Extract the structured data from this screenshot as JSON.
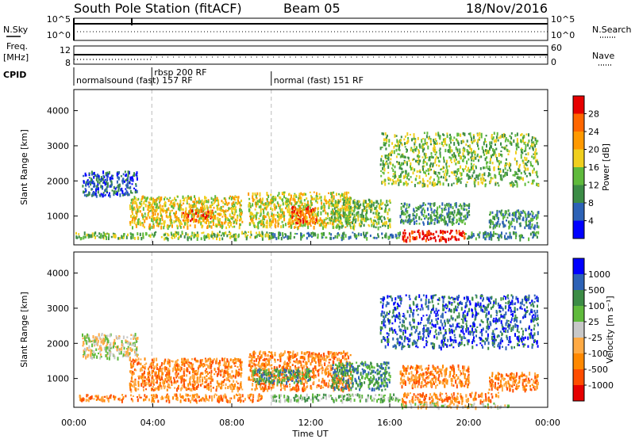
{
  "header": {
    "station": "South Pole Station (fitACF)",
    "beam": "Beam 05",
    "date": "18/Nov/2016"
  },
  "left_labels": {
    "nsky": "N.Sky",
    "freq_line1": "Freq.",
    "freq_line2": "[MHz]",
    "cpid": "CPID"
  },
  "right_labels": {
    "nsearch": "N.Search",
    "nave": "Nave"
  },
  "noise_ticks_left": [
    "10^5",
    "10^0"
  ],
  "noise_ticks_right": [
    "10^5",
    "10^0"
  ],
  "freq_ticks": [
    "12",
    "8"
  ],
  "nave_ticks": [
    "60",
    "0"
  ],
  "cpid_segments": [
    {
      "label": "normalsound (fast) 157 RF",
      "start_hour": 0
    },
    {
      "label": "rbsp 200 RF",
      "start_hour": 3.95
    },
    {
      "label": "normal (fast) 151 RF",
      "start_hour": 10
    }
  ],
  "x_axis": {
    "label": "Time UT",
    "ticks": [
      "00:00",
      "04:00",
      "08:00",
      "12:00",
      "16:00",
      "20:00",
      "00:00"
    ]
  },
  "colors": {
    "power": [
      "#0000ff",
      "#2d62b6",
      "#3c8c46",
      "#5fba3c",
      "#f0cf1e",
      "#ff9900",
      "#ff6600",
      "#e60000"
    ],
    "velocity": [
      "#e60000",
      "#ff4d00",
      "#ff8800",
      "#ffaa44",
      "#c8c8c8",
      "#5fba3c",
      "#3c8c46",
      "#2d62b6",
      "#0000ff"
    ],
    "ground_scatter": "#aaaaaa"
  },
  "chart_data": [
    {
      "type": "heatmap",
      "panel": "power",
      "ylabel": "Slant Range [km]",
      "xlabel": "Time UT",
      "xlim_hours": [
        0,
        24
      ],
      "ylim": [
        180,
        4600
      ],
      "yticks": [
        "1000",
        "2000",
        "3000",
        "4000"
      ],
      "colorbar": {
        "label": "Power [dB]",
        "ticks": [
          "4",
          "8",
          "12",
          "16",
          "20",
          "24",
          "28"
        ],
        "range": [
          0,
          30
        ]
      },
      "scatter_regions": [
        {
          "t_start": 0.0,
          "t_end": 4.0,
          "r_start": 400,
          "r_end": 560,
          "value": 12
        },
        {
          "t_start": 4.0,
          "t_end": 10.0,
          "r_start": 380,
          "r_end": 580,
          "value": 14
        },
        {
          "t_start": 10.0,
          "t_end": 16.5,
          "r_start": 400,
          "r_end": 560,
          "value": 10
        },
        {
          "t_start": 16.6,
          "t_end": 19.8,
          "r_start": 340,
          "r_end": 620,
          "value": 28
        },
        {
          "t_start": 19.8,
          "t_end": 23.5,
          "r_start": 380,
          "r_end": 580,
          "value": 10
        },
        {
          "t_start": 2.8,
          "t_end": 8.5,
          "r_start": 700,
          "r_end": 1600,
          "value": 16
        },
        {
          "t_start": 5.5,
          "t_end": 7.0,
          "r_start": 900,
          "r_end": 1200,
          "value": 24
        },
        {
          "t_start": 8.8,
          "t_end": 14.0,
          "r_start": 700,
          "r_end": 1700,
          "value": 18
        },
        {
          "t_start": 11.0,
          "t_end": 12.3,
          "r_start": 800,
          "r_end": 1300,
          "value": 26
        },
        {
          "t_start": 13.0,
          "t_end": 16.0,
          "r_start": 700,
          "r_end": 1500,
          "value": 12
        },
        {
          "t_start": 16.5,
          "t_end": 20.0,
          "r_start": 800,
          "r_end": 1400,
          "value": 10
        },
        {
          "t_start": 21.0,
          "t_end": 23.5,
          "r_start": 700,
          "r_end": 1200,
          "value": 8
        },
        {
          "t_start": 0.4,
          "t_end": 3.2,
          "r_start": 1600,
          "r_end": 2300,
          "value": 6
        },
        {
          "t_start": 15.5,
          "t_end": 23.5,
          "r_start": 1900,
          "r_end": 3400,
          "value": 12
        }
      ]
    },
    {
      "type": "heatmap",
      "panel": "velocity",
      "ylabel": "Slant Range [km]",
      "xlabel": "Time UT",
      "xlim_hours": [
        0,
        24
      ],
      "ylim": [
        180,
        4600
      ],
      "yticks": [
        "1000",
        "2000",
        "3000",
        "4000"
      ],
      "colorbar": {
        "label": "Velocity [m s⁻¹]",
        "ticks": [
          "1000",
          "500",
          "100",
          "25",
          "-25",
          "-100",
          "-500",
          "-1000"
        ],
        "range": [
          -1200,
          1200
        ]
      },
      "scatter_regions": [
        {
          "t_start": 0.2,
          "t_end": 4.0,
          "r_start": 400,
          "r_end": 560,
          "value": -150
        },
        {
          "t_start": 4.0,
          "t_end": 9.5,
          "r_start": 380,
          "r_end": 580,
          "value": -180
        },
        {
          "t_start": 10.0,
          "t_end": 16.5,
          "r_start": 380,
          "r_end": 580,
          "value": 60
        },
        {
          "t_start": 16.6,
          "t_end": 21.5,
          "r_start": 340,
          "r_end": 620,
          "value": -250
        },
        {
          "t_start": 16.5,
          "t_end": 22.0,
          "r_start": 200,
          "r_end": 320,
          "value": 0
        },
        {
          "t_start": 2.8,
          "t_end": 8.5,
          "r_start": 700,
          "r_end": 1600,
          "value": -300
        },
        {
          "t_start": 8.8,
          "t_end": 14.0,
          "r_start": 700,
          "r_end": 1800,
          "value": -200
        },
        {
          "t_start": 9.0,
          "t_end": 12.0,
          "r_start": 900,
          "r_end": 1300,
          "value": 250
        },
        {
          "t_start": 13.0,
          "t_end": 16.0,
          "r_start": 700,
          "r_end": 1500,
          "value": 400
        },
        {
          "t_start": 16.5,
          "t_end": 20.0,
          "r_start": 800,
          "r_end": 1400,
          "value": -300
        },
        {
          "t_start": 21.0,
          "t_end": 23.5,
          "r_start": 700,
          "r_end": 1200,
          "value": -150
        },
        {
          "t_start": 0.4,
          "t_end": 3.2,
          "r_start": 1600,
          "r_end": 2300,
          "value": 0
        },
        {
          "t_start": 15.5,
          "t_end": 23.5,
          "r_start": 1900,
          "r_end": 3400,
          "value": 600
        }
      ]
    }
  ]
}
